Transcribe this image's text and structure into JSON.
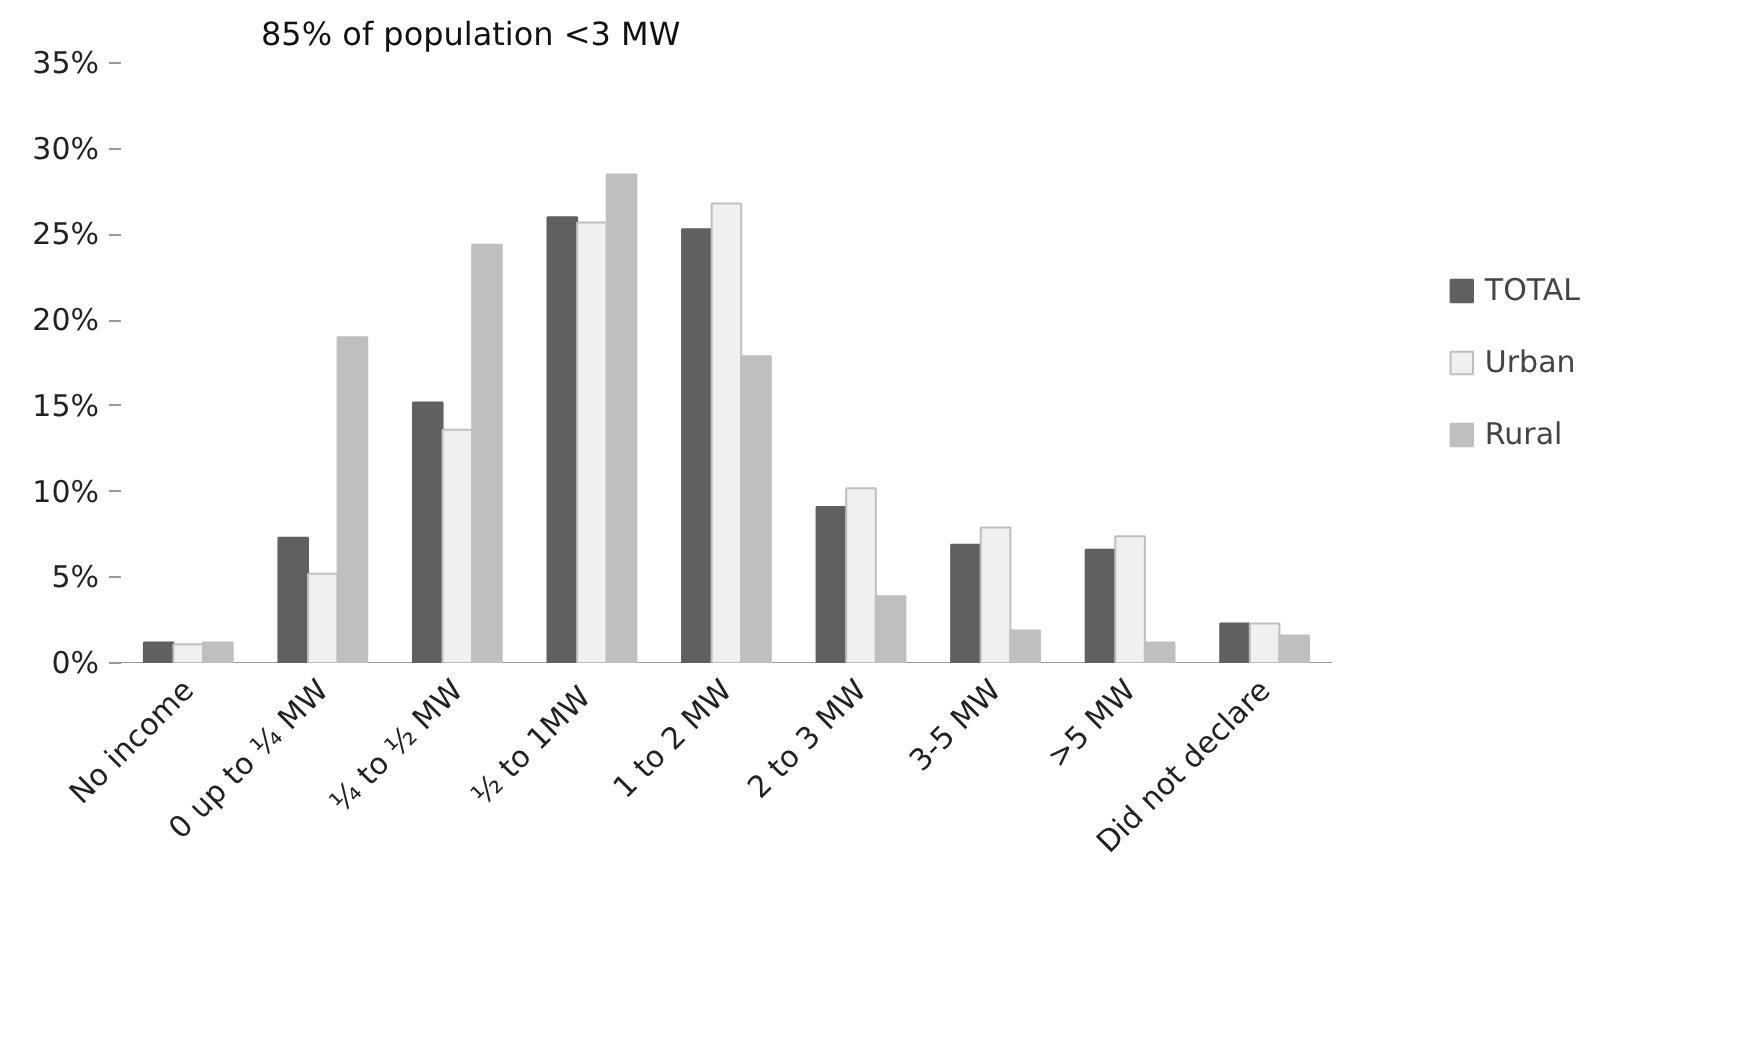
{
  "chart_data": {
    "type": "bar",
    "categories": [
      "No income",
      "0 up to ¼ MW",
      "¼ to ½ MW",
      "½  to 1MW",
      "1 to 2 MW",
      "2 to 3 MW",
      "3-5 MW",
      ">5 MW",
      "Did not declare"
    ],
    "series": [
      {
        "name": "TOTAL",
        "color": "#606060",
        "values": [
          1.2,
          7.3,
          15.2,
          26.0,
          25.3,
          9.1,
          6.9,
          6.6,
          2.3
        ]
      },
      {
        "name": "Urban",
        "color": "#f0f0f0",
        "values": [
          1.1,
          5.2,
          13.6,
          25.7,
          26.8,
          10.2,
          7.9,
          7.4,
          2.3
        ]
      },
      {
        "name": "Rural",
        "color": "#bfbfbf",
        "values": [
          1.2,
          19.0,
          24.4,
          28.5,
          17.9,
          3.9,
          1.9,
          1.2,
          1.6
        ]
      }
    ],
    "ylim": [
      0,
      35
    ],
    "yticks": [
      {
        "value": 0,
        "label": "0%"
      },
      {
        "value": 5,
        "label": "5%"
      },
      {
        "value": 10,
        "label": "10%"
      },
      {
        "value": 15,
        "label": "15%"
      },
      {
        "value": 20,
        "label": "20%"
      },
      {
        "value": 25,
        "label": "25%"
      },
      {
        "value": 30,
        "label": "30%"
      },
      {
        "value": 35,
        "label": "35%"
      }
    ],
    "annotations": [
      "85% of population <3 MW"
    ],
    "grid": false,
    "legend": "right"
  }
}
